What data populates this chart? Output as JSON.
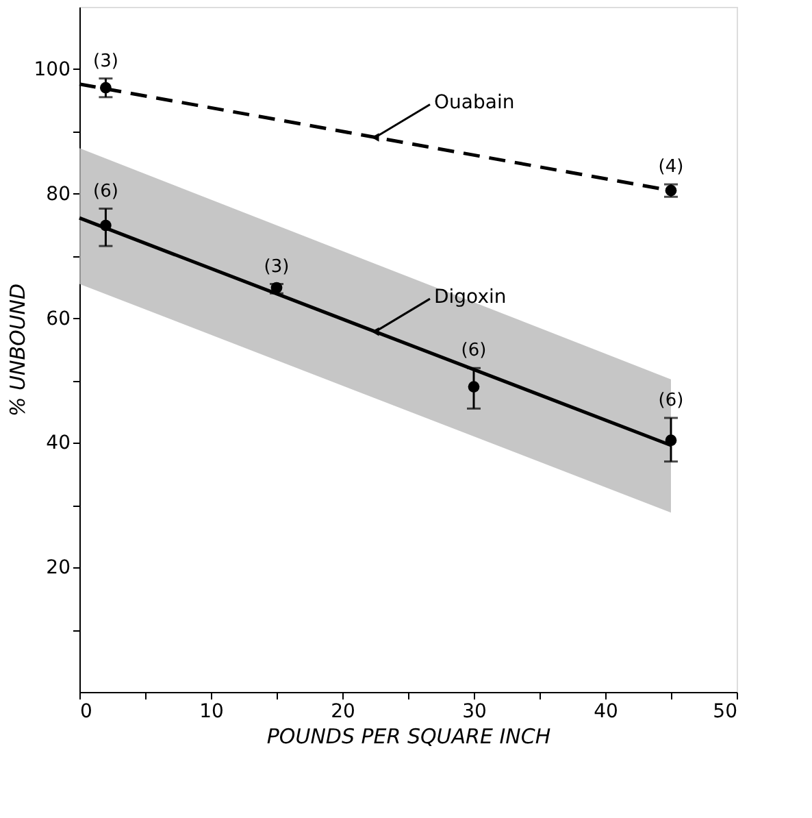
{
  "chart_data": {
    "type": "line",
    "xlabel": "POUNDS PER SQUARE INCH",
    "ylabel": "% UNBOUND",
    "xlim": [
      0,
      50
    ],
    "ylim": [
      0,
      110
    ],
    "xticks": [
      0,
      {
        "value": 5,
        "label": null
      },
      10,
      {
        "value": 15,
        "label": null
      },
      20,
      {
        "value": 25,
        "label": null
      },
      30,
      {
        "value": 35,
        "label": null
      },
      40,
      {
        "value": 45,
        "label": null
      },
      50
    ],
    "yticks": [
      {
        "value": 10,
        "label": null
      },
      20,
      {
        "value": 30,
        "label": null
      },
      40,
      {
        "value": 50,
        "label": null
      },
      60,
      {
        "value": 70,
        "label": null
      },
      80,
      {
        "value": 90,
        "label": null
      },
      100
    ],
    "grid": false,
    "series": [
      {
        "name": "Ouabain",
        "type": "line",
        "x": [
          0,
          45
        ],
        "values": [
          97.6,
          80.5
        ],
        "color": "#000000",
        "line_style": "dashed"
      },
      {
        "name": "Digoxin",
        "type": "line",
        "x": [
          0,
          45
        ],
        "values": [
          76.1,
          39.6
        ],
        "lower": [
          65.5,
          28.8
        ],
        "upper": [
          87.3,
          50.2
        ],
        "color": "#000000",
        "line_style": "solid"
      },
      {
        "type": "scatter",
        "x": [
          2,
          45
        ],
        "values": [
          97,
          80.5
        ],
        "errors": [
          [
            95.5,
            98.5
          ],
          [
            79.5,
            81.5
          ]
        ],
        "color": "#000000",
        "marker": "circle"
      },
      {
        "type": "scatter",
        "x": [
          2,
          15,
          30,
          45
        ],
        "values": [
          74.9,
          64.9,
          49,
          40.4
        ],
        "errors": [
          [
            71.6,
            77.6
          ],
          [
            64,
            65.5
          ],
          [
            45.5,
            52
          ],
          [
            37,
            44
          ]
        ],
        "color": "#000000",
        "marker": "circle"
      }
    ],
    "annotations": [
      {
        "text": "(3)",
        "x": 2,
        "y": 98.5
      },
      {
        "text": "(4)",
        "x": 45,
        "y": 81.5
      },
      {
        "text": "(6)",
        "x": 2,
        "y": 77.6
      },
      {
        "text": "(3)",
        "x": 15,
        "y": 65.5
      },
      {
        "text": "(6)",
        "x": 30,
        "y": 52
      },
      {
        "text": "(6)",
        "x": 45,
        "y": 44
      }
    ]
  }
}
